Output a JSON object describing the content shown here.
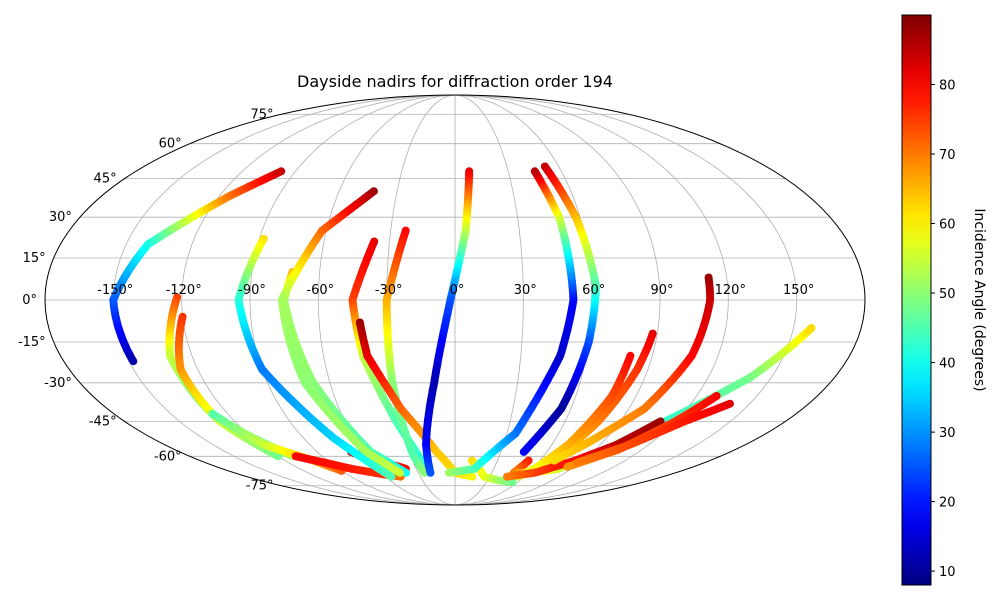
{
  "chart_data": {
    "type": "scatter",
    "projection": "mollweide",
    "title": "Dayside nadirs for diffraction order 194",
    "grid": true,
    "lon_ticks": [
      "-150°",
      "-120°",
      "-90°",
      "-60°",
      "-30°",
      "0°",
      "30°",
      "60°",
      "90°",
      "120°",
      "150°"
    ],
    "lon_tick_values": [
      -150,
      -120,
      -90,
      -60,
      -30,
      0,
      30,
      60,
      90,
      120,
      150
    ],
    "lat_ticks": [
      "75°",
      "60°",
      "45°",
      "30°",
      "15°",
      "0°",
      "-15°",
      "-30°",
      "-45°",
      "-60°",
      "-75°"
    ],
    "lat_tick_values": [
      75,
      60,
      45,
      30,
      15,
      0,
      -15,
      -30,
      -45,
      -60,
      -75
    ],
    "colorbar": {
      "label": "Incidence Angle (degrees)",
      "cmap": "jet",
      "range": [
        8,
        90
      ],
      "ticks": [
        "10",
        "20",
        "30",
        "40",
        "50",
        "60",
        "70",
        "80"
      ],
      "tick_values": [
        10,
        20,
        30,
        40,
        50,
        60,
        70,
        80
      ]
    },
    "tracks": [
      {
        "points": [
          [
            -122,
            1,
            75
          ],
          [
            -130,
            -20,
            55
          ],
          [
            -128,
            -45,
            45
          ],
          [
            -110,
            -60,
            52
          ]
        ]
      },
      {
        "points": [
          [
            -120,
            -6,
            76
          ],
          [
            -128,
            -25,
            68
          ],
          [
            -128,
            -45,
            56
          ],
          [
            -120,
            -60,
            48
          ]
        ]
      },
      {
        "points": [
          [
            -148,
            -22,
            11
          ],
          [
            -150,
            0,
            25
          ],
          [
            -140,
            20,
            40
          ],
          [
            -115,
            38,
            70
          ],
          [
            -98,
            48,
            84
          ]
        ]
      },
      {
        "points": [
          [
            -128,
            -42,
            45
          ],
          [
            -118,
            -55,
            55
          ],
          [
            -100,
            -62,
            66
          ],
          [
            -90,
            -67,
            72
          ]
        ]
      },
      {
        "points": [
          [
            -108,
            -60,
            80
          ],
          [
            -80,
            -66,
            78
          ],
          [
            -58,
            -69,
            76
          ],
          [
            -47,
            -70,
            71
          ]
        ]
      },
      {
        "points": [
          [
            -68,
            -58,
            85
          ],
          [
            -60,
            -61,
            84
          ],
          [
            -50,
            -63,
            82
          ],
          [
            -38,
            -66,
            79
          ]
        ]
      },
      {
        "points": [
          [
            -88,
            22,
            62
          ],
          [
            -95,
            0,
            42
          ],
          [
            -90,
            -25,
            28
          ],
          [
            -72,
            -52,
            35
          ],
          [
            -55,
            -70,
            45
          ]
        ]
      },
      {
        "points": [
          [
            -72,
            10,
            65
          ],
          [
            -75,
            0,
            52
          ],
          [
            -68,
            -30,
            50
          ],
          [
            -55,
            -58,
            45
          ],
          [
            -40,
            -68,
            40
          ]
        ]
      },
      {
        "points": [
          [
            -42,
            40,
            88
          ],
          [
            -62,
            25,
            72
          ],
          [
            -76,
            0,
            52
          ],
          [
            -72,
            -30,
            50
          ],
          [
            -58,
            -58,
            52
          ],
          [
            -45,
            -68,
            55
          ]
        ]
      },
      {
        "points": [
          [
            -37,
            21,
            82
          ],
          [
            -45,
            0,
            75
          ],
          [
            -42,
            -20,
            55
          ],
          [
            -32,
            -45,
            45
          ],
          [
            -22,
            -65,
            42
          ]
        ]
      },
      {
        "points": [
          [
            -23,
            25,
            80
          ],
          [
            -30,
            0,
            66
          ],
          [
            -30,
            -30,
            50
          ],
          [
            -28,
            -60,
            45
          ],
          [
            -25,
            -68,
            50
          ]
        ]
      },
      {
        "points": [
          [
            -42,
            -8,
            88
          ],
          [
            -40,
            -20,
            82
          ],
          [
            -28,
            -40,
            72
          ],
          [
            -12,
            -58,
            64
          ],
          [
            0,
            -68,
            62
          ],
          [
            15,
            -70,
            60
          ]
        ]
      },
      {
        "points": [
          [
            8,
            48,
            82
          ],
          [
            5,
            25,
            55
          ],
          [
            -2,
            0,
            25
          ],
          [
            -10,
            -30,
            12
          ],
          [
            -18,
            -55,
            18
          ],
          [
            -20,
            -68,
            25
          ]
        ]
      },
      {
        "points": [
          [
            12,
            -62,
            62
          ],
          [
            25,
            -70,
            58
          ],
          [
            40,
            -72,
            52
          ],
          [
            55,
            -73,
            48
          ]
        ]
      },
      {
        "points": [
          [
            -5,
            -68,
            52
          ],
          [
            15,
            -66,
            45
          ],
          [
            35,
            -50,
            28
          ],
          [
            48,
            -20,
            14
          ],
          [
            52,
            0,
            18
          ],
          [
            50,
            30,
            55
          ],
          [
            45,
            48,
            85
          ]
        ]
      },
      {
        "points": [
          [
            52,
            50,
            85
          ],
          [
            58,
            30,
            65
          ],
          [
            62,
            5,
            45
          ],
          [
            60,
            -15,
            25
          ],
          [
            55,
            -40,
            10
          ],
          [
            45,
            -58,
            18
          ]
        ]
      },
      {
        "points": [
          [
            52,
            -62,
            78
          ],
          [
            48,
            -68,
            70
          ],
          [
            62,
            -68,
            62
          ],
          [
            80,
            -66,
            56
          ],
          [
            95,
            -58,
            48
          ],
          [
            110,
            -48,
            42
          ],
          [
            140,
            -28,
            48
          ],
          [
            158,
            -10,
            62
          ]
        ]
      },
      {
        "points": [
          [
            88,
            -12,
            82
          ],
          [
            85,
            -25,
            76
          ],
          [
            78,
            -45,
            70
          ],
          [
            70,
            -60,
            62
          ],
          [
            55,
            -70,
            56
          ]
        ]
      },
      {
        "points": [
          [
            80,
            -20,
            80
          ],
          [
            78,
            -35,
            74
          ],
          [
            70,
            -55,
            66
          ],
          [
            60,
            -68,
            58
          ]
        ]
      },
      {
        "points": [
          [
            112,
            -45,
            88
          ],
          [
            100,
            -55,
            85
          ],
          [
            85,
            -62,
            80
          ],
          [
            65,
            -68,
            75
          ],
          [
            45,
            -70,
            70
          ]
        ]
      },
      {
        "points": [
          [
            112,
            8,
            88
          ],
          [
            112,
            0,
            84
          ],
          [
            108,
            -20,
            80
          ],
          [
            98,
            -40,
            70
          ],
          [
            80,
            -55,
            65
          ],
          [
            70,
            -62,
            62
          ]
        ]
      },
      {
        "points": [
          [
            130,
            -35,
            80
          ],
          [
            120,
            -45,
            76
          ],
          [
            105,
            -57,
            72
          ],
          [
            85,
            -65,
            68
          ]
        ]
      },
      {
        "points": [
          [
            140,
            -38,
            82
          ],
          [
            125,
            -45,
            78
          ],
          [
            108,
            -55,
            74
          ],
          [
            88,
            -63,
            70
          ]
        ]
      }
    ]
  }
}
